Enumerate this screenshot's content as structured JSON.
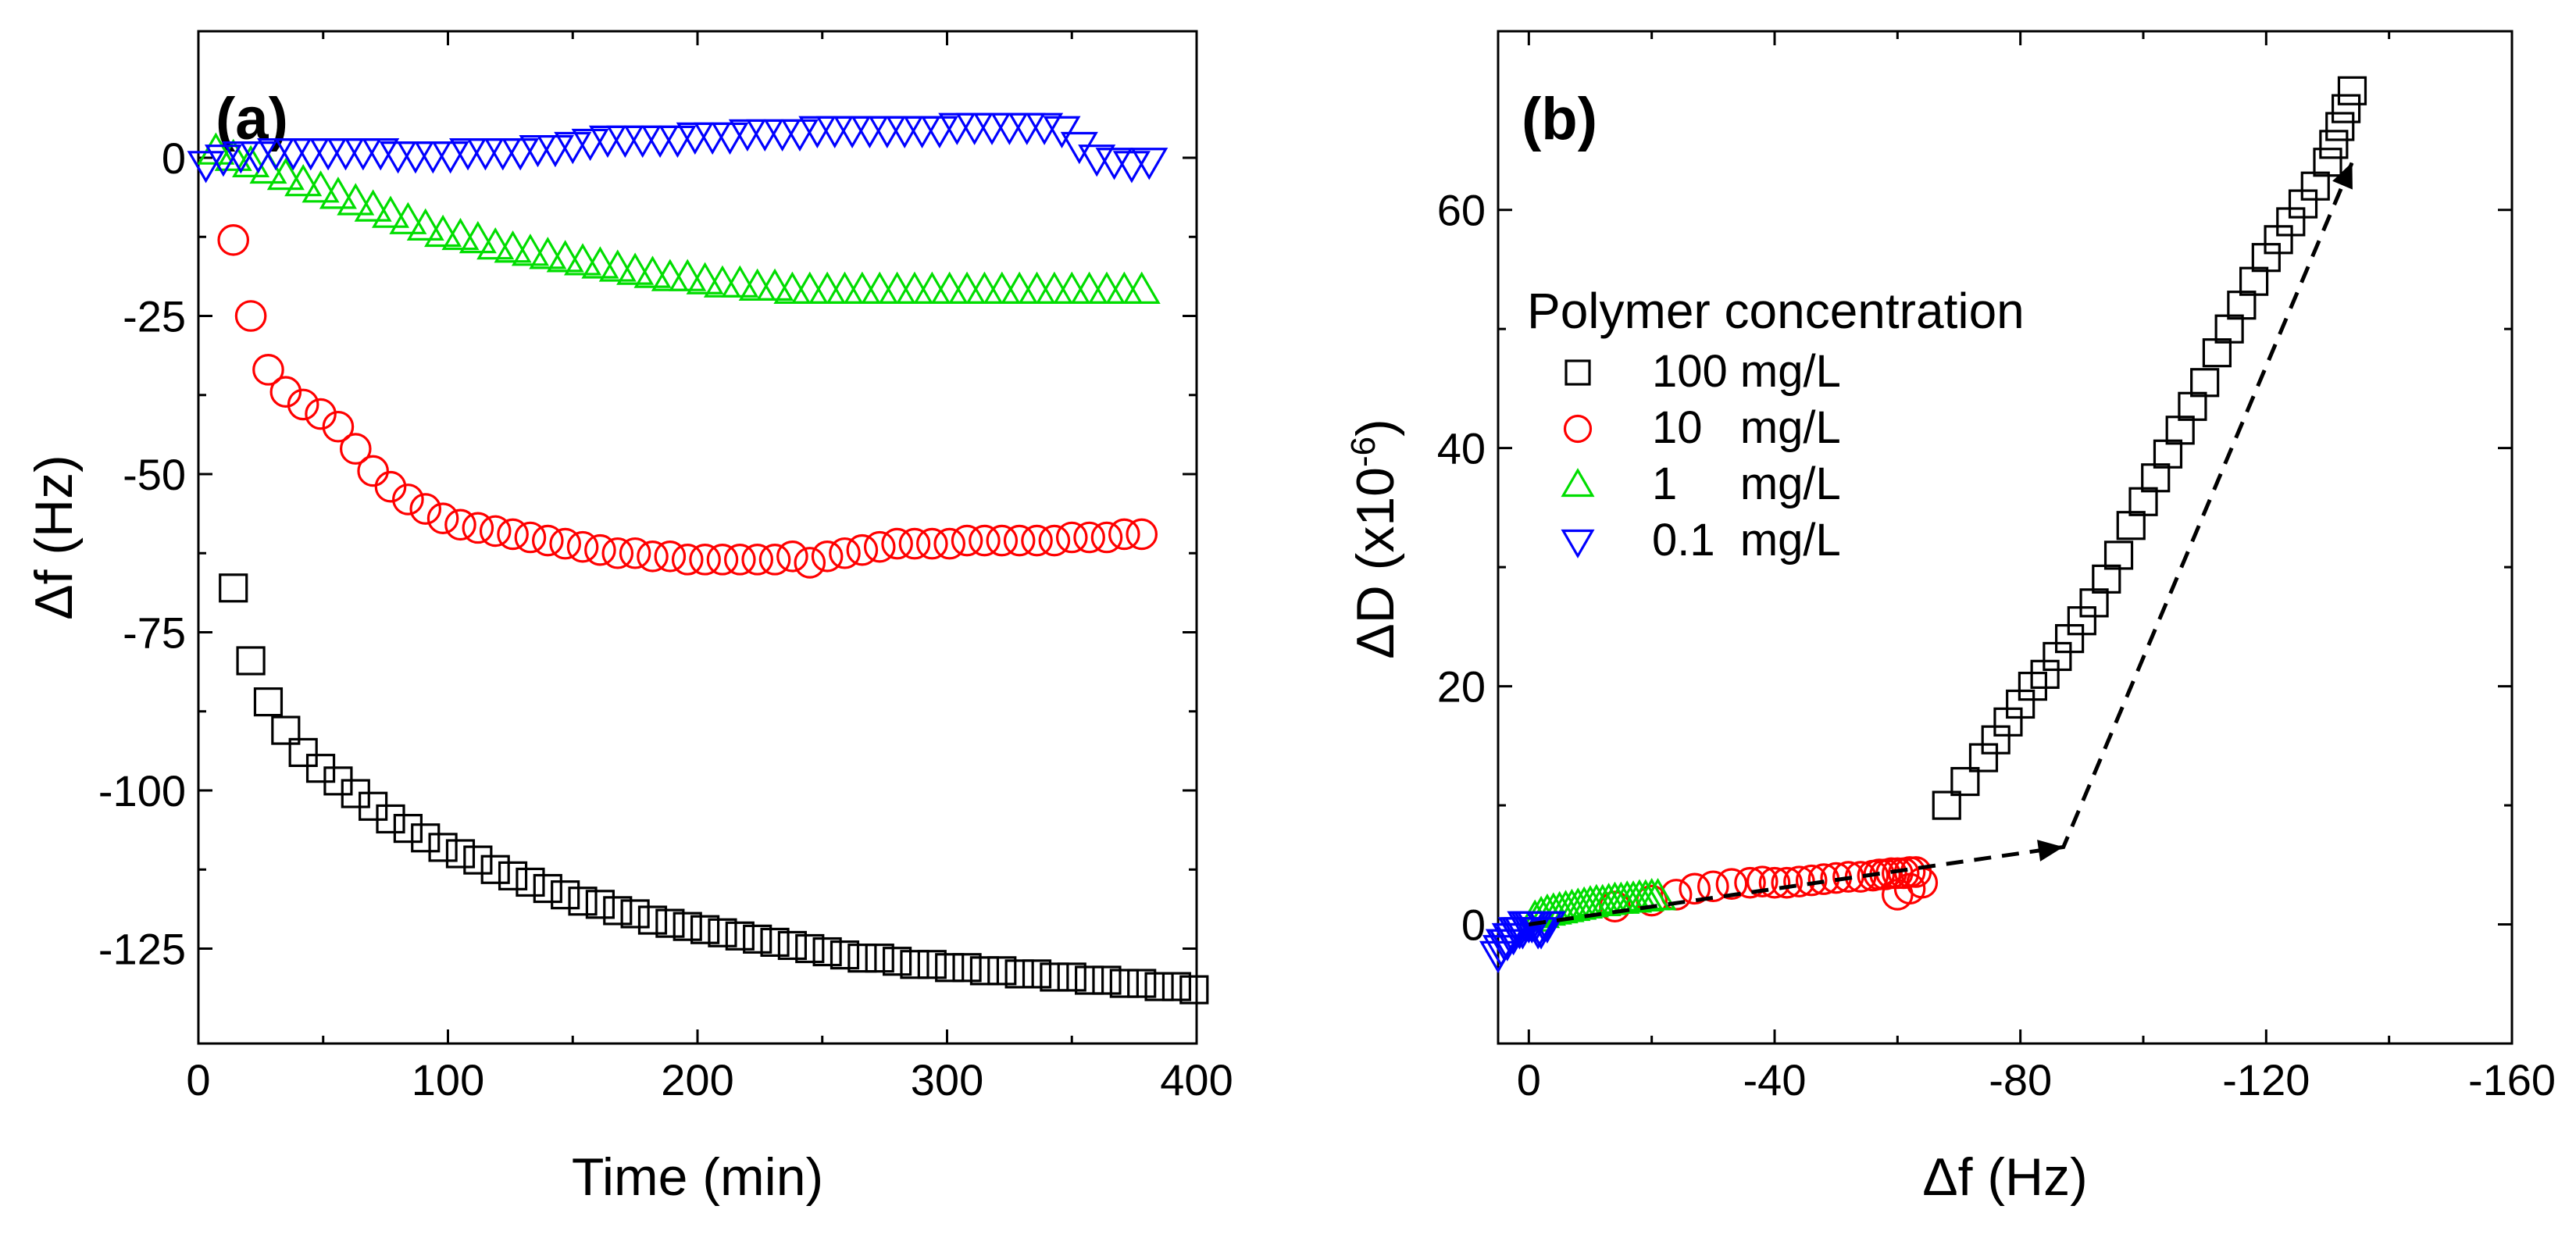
{
  "chart_data": [
    {
      "panel": "a",
      "type": "scatter",
      "panel_label": "(a)",
      "xlabel": "Time (min)",
      "ylabel": "Δf (Hz)",
      "xlim": [
        0,
        400
      ],
      "ylim": [
        -140,
        20
      ],
      "xticks": [
        0,
        100,
        200,
        300,
        400
      ],
      "xtick_labels": [
        "0",
        "100",
        "200",
        "300",
        "400"
      ],
      "yticks": [
        0,
        -25,
        -50,
        -75,
        -100,
        -125
      ],
      "ytick_labels": [
        "0",
        "-25",
        "-50",
        "-75",
        "-100",
        "-125"
      ],
      "series": [
        {
          "name": "100 mg/L",
          "marker": "square",
          "color": "#000000",
          "x": [
            14,
            21,
            28,
            35,
            42,
            49,
            56,
            63,
            70,
            77,
            84,
            91,
            98,
            105,
            112,
            119,
            126,
            133,
            140,
            147,
            154,
            161,
            168,
            175,
            182,
            189,
            196,
            203,
            210,
            217,
            224,
            231,
            238,
            245,
            252,
            259,
            266,
            273,
            280,
            287,
            294,
            301,
            308,
            315,
            322,
            329,
            336,
            343,
            350,
            357,
            364,
            371,
            378,
            385,
            392,
            399
          ],
          "y": [
            -68,
            -79.5,
            -86,
            -90.5,
            -94,
            -96.5,
            -98.5,
            -100.5,
            -102.5,
            -104.5,
            -106,
            -107.5,
            -109,
            -110,
            -111,
            -112.5,
            -113.5,
            -114.5,
            -115.5,
            -116.5,
            -117.5,
            -118,
            -119,
            -119.5,
            -120.5,
            -121,
            -121.5,
            -122,
            -122.5,
            -123,
            -123.5,
            -124,
            -124.5,
            -125,
            -125.5,
            -126,
            -126.5,
            -126.5,
            -127,
            -127.5,
            -127.5,
            -128,
            -128,
            -128.5,
            -128.5,
            -129,
            -129,
            -129.5,
            -129.5,
            -130,
            -130,
            -130.5,
            -130.5,
            -131,
            -131,
            -131.5
          ]
        },
        {
          "name": "10 mg/L",
          "marker": "circle",
          "color": "#ff0000",
          "x": [
            14,
            21,
            28,
            35,
            42,
            49,
            56,
            63,
            70,
            77,
            84,
            91,
            98,
            105,
            112,
            119,
            126,
            133,
            140,
            147,
            154,
            161,
            168,
            175,
            182,
            189,
            196,
            203,
            210,
            217,
            224,
            231,
            238,
            245,
            252,
            259,
            266,
            273,
            280,
            287,
            294,
            301,
            308,
            315,
            322,
            329,
            336,
            343,
            350,
            357,
            364,
            371,
            378
          ],
          "y": [
            -13,
            -25,
            -33.5,
            -37,
            -39,
            -40.5,
            -42.5,
            -46,
            -49.5,
            -52,
            -54,
            -55.5,
            -57,
            -58,
            -58.5,
            -59,
            -59.5,
            -60,
            -60.5,
            -61,
            -61.5,
            -62,
            -62.5,
            -62.5,
            -63,
            -63,
            -63.5,
            -63.5,
            -63.5,
            -63.5,
            -63.5,
            -63.5,
            -63,
            -64,
            -63,
            -62.5,
            -62,
            -61.5,
            -61,
            -61,
            -61,
            -61,
            -60.5,
            -60.5,
            -60.5,
            -60.5,
            -60.5,
            -60.5,
            -60,
            -60,
            -60,
            -59.5,
            -59.5
          ]
        },
        {
          "name": "1 mg/L",
          "marker": "triangle-up",
          "color": "#00dd00",
          "x": [
            7,
            14,
            21,
            28,
            35,
            42,
            49,
            56,
            63,
            70,
            77,
            84,
            91,
            98,
            105,
            112,
            119,
            126,
            133,
            140,
            147,
            154,
            161,
            168,
            175,
            182,
            189,
            196,
            203,
            210,
            217,
            224,
            231,
            238,
            245,
            252,
            259,
            266,
            273,
            280,
            287,
            294,
            301,
            308,
            315,
            322,
            329,
            336,
            343,
            350,
            357,
            364,
            371,
            378
          ],
          "y": [
            1,
            0,
            -1,
            -2,
            -3,
            -4,
            -5,
            -6,
            -7,
            -8,
            -9,
            -10,
            -11,
            -12,
            -12.5,
            -13,
            -14,
            -14.5,
            -15,
            -15.5,
            -16,
            -16.5,
            -17,
            -17.5,
            -18,
            -18.5,
            -19,
            -19,
            -19.5,
            -20,
            -20,
            -20.5,
            -20.5,
            -21,
            -21,
            -21,
            -21,
            -21,
            -21,
            -21,
            -21,
            -21,
            -21,
            -21,
            -21,
            -21,
            -21,
            -21,
            -21,
            -21,
            -21,
            -21,
            -21,
            -21
          ]
        },
        {
          "name": "0.1 mg/L",
          "marker": "triangle-down",
          "color": "#0000ff",
          "x": [
            3,
            10,
            17,
            24,
            31,
            38,
            45,
            52,
            59,
            66,
            73,
            80,
            87,
            94,
            101,
            108,
            115,
            122,
            129,
            136,
            143,
            150,
            157,
            164,
            171,
            178,
            185,
            192,
            199,
            206,
            213,
            220,
            227,
            234,
            241,
            248,
            255,
            262,
            269,
            276,
            283,
            290,
            297,
            304,
            311,
            318,
            325,
            332,
            339,
            346,
            353,
            360,
            367,
            374,
            381
          ],
          "y": [
            -1,
            0,
            0.5,
            0.5,
            1,
            1,
            1,
            1,
            1,
            1,
            1,
            0.5,
            0.5,
            0.5,
            0.5,
            1,
            1,
            1,
            1,
            1.5,
            1.5,
            2,
            2.5,
            3,
            3,
            3,
            3,
            3,
            3.5,
            3.5,
            3.5,
            4,
            4,
            4,
            4,
            4.5,
            4.5,
            4.5,
            4.5,
            4.5,
            4.5,
            4.5,
            4.5,
            5,
            5,
            5,
            5,
            5,
            5,
            4.5,
            2,
            0,
            -0.5,
            -1,
            -0.5
          ]
        }
      ]
    },
    {
      "panel": "b",
      "type": "scatter",
      "panel_label": "(b)",
      "xlabel": "Δf (Hz)",
      "ylabel": "ΔD (x10",
      "ylabel_exponent": "-6",
      "ylabel_close": ")",
      "xlim": [
        5,
        -160
      ],
      "ylim": [
        -10,
        75
      ],
      "xticks": [
        0,
        -40,
        -80,
        -120,
        -160
      ],
      "xtick_labels": [
        "0",
        "-40",
        "-80",
        "-120",
        "-160"
      ],
      "yticks": [
        0,
        20,
        40,
        60
      ],
      "ytick_labels": [
        "0",
        "20",
        "40",
        "60"
      ],
      "legend_title": "Polymer concentration",
      "legend_location": "upper-left",
      "legend_entries": [
        "100 mg/L",
        "10   mg/L",
        "1     mg/L",
        "0.1  mg/L"
      ],
      "annotation": "dashed arrow path from (0, 0) to (-87, 6.5) to (-134, 64)",
      "arrow_path": [
        [
          0,
          0
        ],
        [
          -87,
          6.5
        ],
        [
          -134,
          64
        ]
      ],
      "series": [
        {
          "name": "100 mg/L",
          "marker": "square",
          "color": "#000000",
          "x": [
            -68,
            -71,
            -74,
            -76,
            -78,
            -80,
            -82,
            -84,
            -86,
            -88,
            -90,
            -92,
            -94,
            -96,
            -98,
            -100,
            -102,
            -104,
            -106,
            -108,
            -110,
            -112,
            -114,
            -116,
            -118,
            -120,
            -122,
            -124,
            -126,
            -128,
            -130,
            -131,
            -132,
            -133,
            -134
          ],
          "y": [
            10,
            12,
            14,
            15.5,
            17,
            18.5,
            20,
            21,
            22.5,
            24,
            25.5,
            27,
            29,
            31,
            33.5,
            35.5,
            37.5,
            39.5,
            41.5,
            43.5,
            45.5,
            48,
            50,
            52,
            54,
            56,
            57.5,
            59,
            60.5,
            62,
            64,
            65.5,
            67,
            68.5,
            70
          ]
        },
        {
          "name": "10 mg/L",
          "marker": "circle",
          "color": "#ff0000",
          "x": [
            -14,
            -20,
            -24,
            -27,
            -30,
            -33,
            -36,
            -38,
            -40,
            -42,
            -44,
            -46,
            -48,
            -50,
            -52,
            -54,
            -56,
            -57,
            -58,
            -59,
            -60,
            -61,
            -62,
            -63,
            -64,
            -62,
            -60
          ],
          "y": [
            1.5,
            2,
            2.5,
            3,
            3.2,
            3.4,
            3.5,
            3.6,
            3.5,
            3.5,
            3.6,
            3.7,
            3.8,
            3.9,
            4,
            4,
            4.1,
            4.2,
            4.2,
            4.3,
            4.3,
            4.3,
            4.4,
            4.4,
            3.5,
            3,
            2.5
          ]
        },
        {
          "name": "1 mg/L",
          "marker": "triangle-up",
          "color": "#00dd00",
          "x": [
            -1,
            -2,
            -3,
            -4,
            -5,
            -6,
            -7,
            -8,
            -9,
            -10,
            -11,
            -12,
            -13,
            -14,
            -15,
            -16,
            -17,
            -18,
            -19,
            -20,
            -21
          ],
          "y": [
            0.5,
            0.8,
            1,
            1.1,
            1.2,
            1.3,
            1.4,
            1.5,
            1.6,
            1.7,
            1.8,
            1.8,
            1.9,
            2,
            2,
            2.1,
            2.1,
            2.2,
            2.2,
            2.3,
            2.3
          ]
        },
        {
          "name": "0.1 mg/L",
          "marker": "triangle-down",
          "color": "#0000ff",
          "x": [
            5,
            4.5,
            4,
            3.5,
            3,
            2.5,
            2,
            1.5,
            1,
            0.5,
            0,
            -0.5,
            -1,
            -1.5,
            -2,
            -2.5,
            -3
          ],
          "y": [
            -2.5,
            -2,
            -1.5,
            -1.5,
            -1,
            -1,
            -0.5,
            -0.5,
            -0.5,
            0,
            0,
            0,
            0,
            -0.5,
            -0.5,
            0,
            0
          ]
        }
      ]
    }
  ]
}
